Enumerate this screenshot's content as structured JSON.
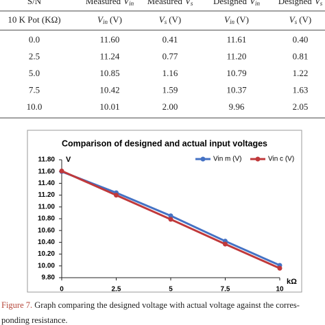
{
  "table": {
    "header": [
      {
        "text": "S/N"
      },
      {
        "text": "Measured",
        "symbol": "V",
        "sub": "in"
      },
      {
        "text": "Measured",
        "symbol": "V",
        "sub": "s"
      },
      {
        "text": "Designed",
        "symbol": "V",
        "sub": "in"
      },
      {
        "text": "Designed",
        "symbol": "V",
        "sub": "s"
      }
    ],
    "units": [
      {
        "text": "10 K Pot (KΩ)"
      },
      {
        "symbol": "V",
        "sub": "in",
        "text": "(V)"
      },
      {
        "symbol": "V",
        "sub": "s",
        "text": "(V)"
      },
      {
        "symbol": "V",
        "sub": "in",
        "text": "(V)"
      },
      {
        "symbol": "V",
        "sub": "s",
        "text": "(V)"
      }
    ],
    "rows": [
      [
        "0.0",
        "11.60",
        "0.41",
        "11.61",
        "0.40"
      ],
      [
        "2.5",
        "11.24",
        "0.77",
        "11.20",
        "0.81"
      ],
      [
        "5.0",
        "10.85",
        "1.16",
        "10.79",
        "1.22"
      ],
      [
        "7.5",
        "10.42",
        "1.59",
        "10.37",
        "1.63"
      ],
      [
        "10.0",
        "10.01",
        "2.00",
        "9.96",
        "2.05"
      ]
    ]
  },
  "chart_data": {
    "type": "line",
    "title": "Comparison of designed and actual input voltages",
    "y_label": "V",
    "x_label": "kΩ",
    "x": [
      0,
      2.5,
      5,
      7.5,
      10
    ],
    "series": [
      {
        "name": "Vin m (V)",
        "color": "#4472c4",
        "values": [
          11.6,
          11.24,
          10.85,
          10.42,
          10.01
        ]
      },
      {
        "name": "Vin c (V)",
        "color": "#c0393b",
        "values": [
          11.61,
          11.2,
          10.79,
          10.37,
          9.96
        ]
      }
    ],
    "xlim": [
      0,
      10
    ],
    "xticks": [
      0,
      2.5,
      5,
      7.5,
      10
    ],
    "ylim": [
      9.8,
      11.8
    ],
    "yticks": [
      {
        "value": 9.8,
        "label": "9.80"
      },
      {
        "value": 10,
        "label": "10.00"
      },
      {
        "value": 10.2,
        "label": "10.20"
      },
      {
        "value": 10.4,
        "label": "10.40"
      },
      {
        "value": 10.6,
        "label": "10.60"
      },
      {
        "value": 10.8,
        "label": "10.80"
      },
      {
        "value": 11,
        "label": "11.00"
      },
      {
        "value": 11.2,
        "label": "11.20"
      },
      {
        "value": 11.4,
        "label": "11.40"
      },
      {
        "value": 11.6,
        "label": "11.60"
      },
      {
        "value": 11.8,
        "label": "11.80"
      }
    ],
    "grid": false,
    "legend": "top-right"
  },
  "caption": {
    "label": "Figure 7.",
    "lines": [
      "Graph comparing the designed voltage with actual voltage against the corres-",
      "ponding resistance."
    ]
  }
}
